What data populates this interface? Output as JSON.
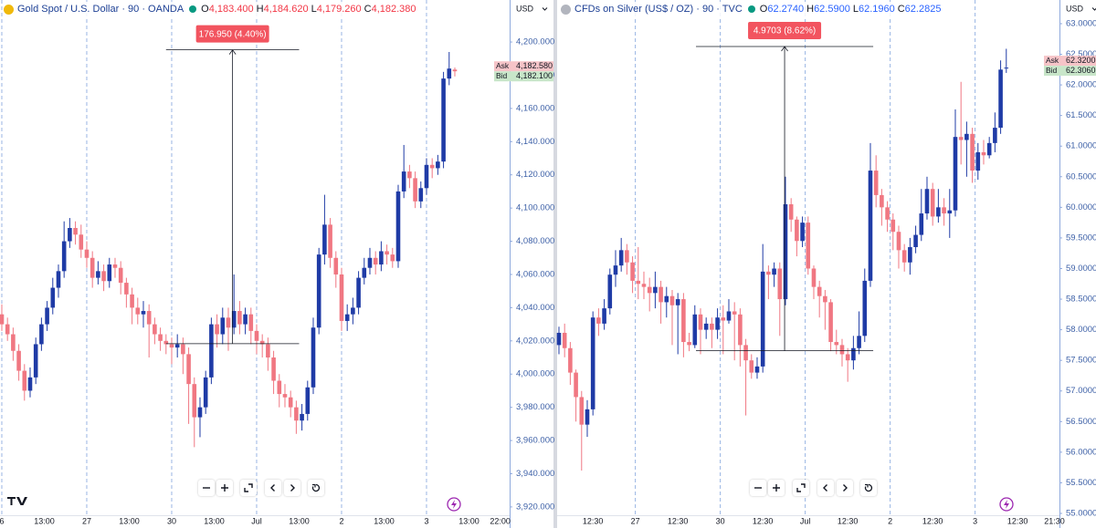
{
  "chart_data": [
    {
      "type": "candlestick",
      "title": "Gold Spot / U.S. Dollar · 90 · OANDA",
      "currency": "USD",
      "ohlc": [
        {
          "key": "O",
          "value": "4,183.400"
        },
        {
          "key": "H",
          "value": "4,184.620"
        },
        {
          "key": "L",
          "value": "4,179.260"
        },
        {
          "key": "C",
          "value": "4,182.380"
        }
      ],
      "header_value_color": "#f23645",
      "up_color": "#1f3ba6",
      "down_color": "#f07782",
      "open": [
        4036,
        4030,
        4024,
        4014,
        4002,
        3990,
        3998,
        4018,
        4030,
        4040,
        4052,
        4062,
        4080,
        4088,
        4084,
        4075,
        4070,
        4058,
        4062,
        4056,
        4066,
        4064,
        4055,
        4048,
        4040,
        4036,
        4038,
        4030,
        4024,
        4020,
        4018,
        4016,
        4018,
        4012,
        3994,
        3974,
        3980,
        3998,
        4030,
        4024,
        4034,
        4028,
        4038,
        4030,
        4036,
        4026,
        4020,
        4018,
        4010,
        3996,
        3988,
        3986,
        3980,
        3972,
        3976,
        3992,
        4028,
        4072,
        4090,
        4070,
        4060,
        4032,
        4036,
        4040,
        4058,
        4064,
        4070,
        4066,
        4074,
        4072,
        4068,
        4110,
        4122,
        4118,
        4104,
        4112,
        4126,
        4124,
        4128,
        4178,
        4183.4
      ],
      "high": [
        4042,
        4034,
        4028,
        4018,
        4006,
        4004,
        4022,
        4034,
        4044,
        4058,
        4066,
        4092,
        4094,
        4092,
        4090,
        4080,
        4074,
        4068,
        4066,
        4070,
        4070,
        4068,
        4058,
        4052,
        4046,
        4044,
        4042,
        4034,
        4028,
        4024,
        4022,
        4024,
        4022,
        4016,
        3998,
        3986,
        4002,
        4034,
        4036,
        4040,
        4040,
        4060,
        4044,
        4040,
        4040,
        4030,
        4024,
        4022,
        4014,
        4000,
        3994,
        3990,
        3984,
        3982,
        3996,
        4034,
        4076,
        4108,
        4094,
        4074,
        4064,
        4042,
        4046,
        4062,
        4070,
        4076,
        4074,
        4080,
        4078,
        4076,
        4114,
        4138,
        4126,
        4122,
        4116,
        4130,
        4130,
        4132,
        4182,
        4194,
        4184.62
      ],
      "low": [
        4026,
        4020,
        4008,
        3996,
        3984,
        3986,
        3994,
        4014,
        4026,
        4036,
        4046,
        4058,
        4076,
        4078,
        4070,
        4064,
        4052,
        4054,
        4050,
        4052,
        4058,
        4048,
        4040,
        4030,
        4030,
        4028,
        4010,
        4018,
        4014,
        4012,
        4006,
        4010,
        4000,
        3970,
        3956,
        3962,
        3976,
        3994,
        4016,
        4018,
        4014,
        4024,
        4024,
        4024,
        4018,
        4012,
        4010,
        4002,
        3988,
        3980,
        3980,
        3974,
        3964,
        3966,
        3972,
        3988,
        4024,
        4066,
        4064,
        4052,
        4026,
        4026,
        4030,
        4036,
        4054,
        4060,
        4060,
        4062,
        4066,
        4064,
        4064,
        4106,
        4112,
        4100,
        4100,
        4108,
        4118,
        4120,
        4124,
        4174,
        4179.26
      ],
      "close": [
        4030,
        4024,
        4014,
        4002,
        3990,
        3998,
        4018,
        4030,
        4040,
        4052,
        4062,
        4080,
        4088,
        4084,
        4075,
        4070,
        4058,
        4062,
        4056,
        4066,
        4064,
        4055,
        4048,
        4040,
        4036,
        4038,
        4030,
        4024,
        4020,
        4018,
        4016,
        4018,
        4012,
        3994,
        3974,
        3980,
        3998,
        4030,
        4024,
        4034,
        4028,
        4038,
        4030,
        4036,
        4026,
        4020,
        4018,
        4010,
        3996,
        3988,
        3986,
        3980,
        3972,
        3976,
        3992,
        4028,
        4072,
        4090,
        4070,
        4060,
        4032,
        4036,
        4040,
        4058,
        4064,
        4070,
        4066,
        4074,
        4072,
        4068,
        4110,
        4122,
        4118,
        4104,
        4112,
        4126,
        4124,
        4128,
        4178,
        4184,
        4182.38
      ],
      "xlim": [
        -0.32,
        89.68
      ],
      "ylim": [
        3915,
        4225.3
      ],
      "yticks": [
        {
          "value": 3920,
          "label": "3,920.000"
        },
        {
          "value": 3940,
          "label": "3,940.000"
        },
        {
          "value": 3960,
          "label": "3,960.000"
        },
        {
          "value": 3980,
          "label": "3,980.000"
        },
        {
          "value": 4000,
          "label": "4,000.000"
        },
        {
          "value": 4020,
          "label": "4,020.000"
        },
        {
          "value": 4040,
          "label": "4,040.000"
        },
        {
          "value": 4060,
          "label": "4,060.000"
        },
        {
          "value": 4080,
          "label": "4,080.000"
        },
        {
          "value": 4100,
          "label": "4,100.000"
        },
        {
          "value": 4120,
          "label": "4,120.000"
        },
        {
          "value": 4140,
          "label": "4,140.000"
        },
        {
          "value": 4160,
          "label": "4,160.000"
        },
        {
          "value": 4180,
          "label": "4,180.000"
        },
        {
          "value": 4200,
          "label": "4,200.000"
        }
      ],
      "xticks": [
        {
          "value": 0,
          "label": "6"
        },
        {
          "value": 15,
          "label": "27"
        },
        {
          "value": 30,
          "label": "30"
        },
        {
          "value": 45,
          "label": "Jul"
        },
        {
          "value": 60,
          "label": "2"
        },
        {
          "value": 75,
          "label": "3"
        }
      ],
      "xticks_minor": [
        {
          "value": 7.5,
          "label": "13:00"
        },
        {
          "value": 22.5,
          "label": "13:00"
        },
        {
          "value": 37.5,
          "label": "13:00"
        },
        {
          "value": 52.5,
          "label": "13:00"
        },
        {
          "value": 67.5,
          "label": "13:00"
        },
        {
          "value": 82.5,
          "label": "13:00"
        },
        {
          "value": 88,
          "label": "22:00"
        }
      ],
      "measure": {
        "label": "176.950 (4.40%)",
        "low": 4018.33,
        "high": 4195.28,
        "x_start": 29,
        "x_end": 52.5
      },
      "price_labels": [
        {
          "name": "Ask",
          "value": 4182.58,
          "label": "4,182.580",
          "color": "#f6c4c8"
        },
        {
          "name": "Bid",
          "value": 4182.1,
          "label": "4,182.100",
          "color": "#c8e6c9"
        }
      ]
    },
    {
      "type": "candlestick",
      "title": "CFDs on Silver (US$ / OZ) · 90 · TVC",
      "currency": "USD",
      "ohlc": [
        {
          "key": "O",
          "value": "62.2740"
        },
        {
          "key": "H",
          "value": "62.5900"
        },
        {
          "key": "L",
          "value": "62.1960"
        },
        {
          "key": "C",
          "value": "62.2825"
        }
      ],
      "header_value_color": "#2962ff",
      "up_color": "#1f3ba6",
      "down_color": "#f07782",
      "open": [
        57.75,
        57.95,
        57.7,
        57.3,
        56.9,
        56.45,
        56.7,
        58.2,
        58.1,
        58.35,
        58.9,
        59.05,
        59.3,
        59.1,
        58.8,
        58.75,
        58.7,
        58.6,
        58.7,
        58.45,
        58.55,
        58.4,
        58.5,
        57.8,
        57.75,
        58.25,
        58.0,
        58.1,
        58.0,
        58.2,
        58.15,
        58.3,
        58.25,
        57.75,
        57.5,
        57.3,
        57.4,
        58.95,
        58.9,
        59.0,
        58.5,
        60.05,
        59.8,
        59.45,
        59.75,
        59.0,
        58.7,
        58.55,
        58.45,
        57.8,
        57.75,
        57.6,
        57.5,
        57.7,
        57.9,
        58.8,
        60.6,
        60.2,
        60.0,
        59.8,
        59.6,
        59.3,
        59.1,
        59.35,
        59.55,
        59.9,
        60.3,
        59.85,
        60.0,
        59.9,
        59.95,
        61.15,
        61.1,
        61.2,
        60.6,
        60.9,
        60.85,
        61.05,
        61.3,
        62.274
      ],
      "high": [
        58.05,
        58.1,
        57.8,
        57.35,
        57.0,
        56.85,
        58.3,
        58.35,
        58.5,
        59.0,
        59.3,
        59.5,
        59.4,
        59.2,
        59.35,
        58.95,
        58.85,
        58.95,
        58.8,
        58.7,
        58.65,
        58.6,
        58.6,
        57.95,
        58.4,
        58.35,
        58.2,
        58.2,
        58.35,
        58.4,
        58.5,
        58.45,
        58.35,
        57.85,
        57.6,
        57.55,
        59.4,
        59.05,
        59.1,
        59.1,
        60.5,
        60.15,
        59.85,
        59.85,
        59.85,
        59.05,
        58.8,
        58.65,
        58.5,
        58.0,
        57.85,
        57.7,
        57.9,
        58.3,
        59.0,
        61.05,
        60.85,
        60.3,
        60.1,
        59.9,
        59.7,
        59.4,
        59.5,
        59.7,
        60.3,
        60.5,
        60.4,
        60.3,
        60.15,
        60.3,
        61.6,
        62.05,
        61.4,
        61.3,
        61.05,
        61.1,
        61.15,
        61.55,
        62.4,
        62.59
      ],
      "low": [
        57.6,
        57.55,
        57.1,
        56.5,
        55.7,
        56.25,
        56.6,
        57.9,
        58.0,
        58.25,
        58.7,
        58.95,
        58.9,
        58.6,
        58.5,
        58.5,
        58.3,
        58.35,
        58.1,
        58.2,
        57.75,
        57.6,
        57.55,
        57.65,
        57.7,
        57.6,
        57.85,
        57.7,
        57.85,
        57.6,
        58.1,
        57.5,
        57.4,
        56.6,
        57.2,
        57.2,
        57.3,
        58.5,
        58.7,
        57.9,
        58.4,
        59.6,
        59.2,
        59.35,
        58.9,
        58.5,
        58.2,
        58.0,
        57.65,
        57.6,
        57.4,
        57.15,
        57.35,
        57.6,
        57.8,
        58.7,
        60.0,
        59.7,
        59.6,
        59.3,
        59.0,
        58.95,
        58.9,
        59.25,
        59.45,
        59.8,
        59.7,
        59.75,
        59.7,
        59.5,
        59.85,
        60.7,
        60.5,
        60.4,
        60.45,
        60.7,
        60.8,
        60.9,
        61.2,
        62.196
      ],
      "close": [
        57.95,
        57.7,
        57.3,
        56.9,
        56.45,
        56.7,
        58.2,
        58.1,
        58.35,
        58.9,
        59.05,
        59.3,
        59.1,
        58.8,
        58.75,
        58.7,
        58.6,
        58.7,
        58.45,
        58.55,
        58.4,
        58.5,
        57.8,
        57.75,
        58.25,
        58.0,
        58.1,
        58.0,
        58.2,
        58.15,
        58.3,
        58.25,
        57.75,
        57.5,
        57.3,
        57.4,
        58.95,
        58.9,
        59.0,
        58.5,
        60.05,
        59.8,
        59.45,
        59.75,
        59.0,
        58.7,
        58.55,
        58.45,
        57.8,
        57.75,
        57.6,
        57.5,
        57.7,
        57.9,
        58.8,
        60.6,
        60.2,
        60.0,
        59.8,
        59.6,
        59.3,
        59.1,
        59.35,
        59.55,
        59.9,
        60.3,
        59.85,
        60.0,
        59.9,
        59.95,
        61.15,
        61.1,
        61.2,
        60.6,
        60.9,
        60.85,
        61.05,
        61.3,
        62.25,
        62.2825
      ],
      "xlim": [
        -0.32,
        88.39
      ],
      "ylim": [
        54.97,
        63.387
      ],
      "yticks": [
        {
          "value": 55,
          "label": "55.0000"
        },
        {
          "value": 55.5,
          "label": "55.5000"
        },
        {
          "value": 56,
          "label": "56.0000"
        },
        {
          "value": 56.5,
          "label": "56.5000"
        },
        {
          "value": 57,
          "label": "57.0000"
        },
        {
          "value": 57.5,
          "label": "57.5000"
        },
        {
          "value": 58,
          "label": "58.0000"
        },
        {
          "value": 58.5,
          "label": "58.5000"
        },
        {
          "value": 59,
          "label": "59.0000"
        },
        {
          "value": 59.5,
          "label": "59.5000"
        },
        {
          "value": 60,
          "label": "60.0000"
        },
        {
          "value": 60.5,
          "label": "60.5000"
        },
        {
          "value": 61,
          "label": "61.0000"
        },
        {
          "value": 61.5,
          "label": "61.5000"
        },
        {
          "value": 62,
          "label": "62.0000"
        },
        {
          "value": 62.5,
          "label": "62.5000"
        },
        {
          "value": 63,
          "label": "63.0000"
        }
      ],
      "xticks": [
        {
          "value": 13.5,
          "label": "27"
        },
        {
          "value": 28.5,
          "label": "30"
        },
        {
          "value": 43.5,
          "label": "Jul"
        },
        {
          "value": 58.5,
          "label": "2"
        },
        {
          "value": 73.5,
          "label": "3"
        }
      ],
      "xticks_minor": [
        {
          "value": 6,
          "label": "12:30"
        },
        {
          "value": 21,
          "label": "12:30"
        },
        {
          "value": 36,
          "label": "12:30"
        },
        {
          "value": 51,
          "label": "12:30"
        },
        {
          "value": 66,
          "label": "12:30"
        },
        {
          "value": 81,
          "label": "12:30"
        },
        {
          "value": 87.5,
          "label": "21:30"
        }
      ],
      "measure": {
        "label": "4.9703 (8.62%)",
        "low": 57.6567,
        "high": 62.627,
        "x_start": 24.2,
        "x_end": 55.5
      },
      "price_labels": [
        {
          "name": "Ask",
          "value": 62.32,
          "label": "62.3200",
          "color": "#f6c4c8"
        },
        {
          "name": "Bid",
          "value": 62.306,
          "label": "62.3060",
          "color": "#c8e6c9"
        }
      ]
    }
  ]
}
